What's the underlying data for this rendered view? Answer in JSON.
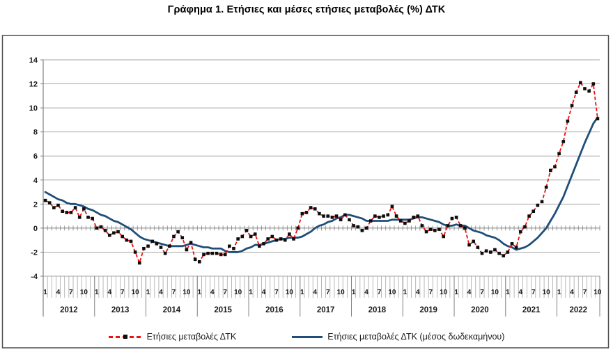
{
  "chart_data": {
    "type": "line",
    "title": "Γράφημα 1. Ετήσιες και μέσες ετήσιες μεταβολές (%) ΔΤΚ",
    "x_unit": "month",
    "x_start": "2012-01",
    "x_end": "2022-10",
    "years": [
      "2012",
      "2013",
      "2014",
      "2015",
      "2016",
      "2017",
      "2018",
      "2019",
      "2020",
      "2021",
      "2022"
    ],
    "month_tick_labels": [
      "1",
      "4",
      "7",
      "10"
    ],
    "ylim": [
      -4,
      14
    ],
    "y_ticks": [
      14,
      12,
      10,
      8,
      6,
      4,
      2,
      0,
      -2,
      -4
    ],
    "grid": true,
    "legend_position": "bottom",
    "grid_color": "#a6a6a6",
    "axis_color": "#808080",
    "border_color": "#4d4d4d",
    "series": [
      {
        "name": "Ετήσιες μεταβολές ΔΤΚ",
        "style": "dashed_line_with_square_markers",
        "color": "#ee1111",
        "marker_color": "#0d0d0d",
        "values": [
          2.3,
          2.1,
          1.7,
          1.9,
          1.4,
          1.3,
          1.3,
          1.7,
          0.9,
          1.6,
          0.9,
          0.8,
          0.0,
          0.1,
          -0.2,
          -0.6,
          -0.4,
          -0.3,
          -0.7,
          -1.0,
          -1.1,
          -2.0,
          -2.9,
          -1.7,
          -1.5,
          -1.1,
          -1.3,
          -1.6,
          -2.1,
          -1.5,
          -0.7,
          -0.3,
          -0.8,
          -1.8,
          -1.2,
          -2.6,
          -2.8,
          -2.2,
          -2.1,
          -2.1,
          -2.1,
          -2.2,
          -2.2,
          -1.5,
          -1.7,
          -0.9,
          -0.7,
          -0.2,
          -0.7,
          -0.5,
          -1.5,
          -1.3,
          -0.9,
          -0.7,
          -1.0,
          -0.9,
          -1.0,
          -0.5,
          -0.9,
          0.0,
          1.2,
          1.3,
          1.7,
          1.6,
          1.2,
          1.0,
          1.0,
          0.9,
          1.0,
          0.7,
          1.1,
          0.7,
          0.2,
          0.1,
          -0.2,
          0.0,
          0.6,
          1.0,
          0.9,
          1.0,
          1.1,
          1.8,
          1.0,
          0.6,
          0.4,
          0.6,
          0.9,
          1.0,
          0.2,
          -0.3,
          -0.1,
          -0.2,
          -0.1,
          -0.7,
          0.2,
          0.8,
          0.9,
          0.2,
          0.0,
          -1.4,
          -1.1,
          -1.6,
          -2.1,
          -1.9,
          -2.0,
          -1.8,
          -2.1,
          -2.3,
          -2.0,
          -1.3,
          -1.6,
          -0.3,
          0.1,
          1.0,
          1.4,
          1.9,
          2.2,
          3.4,
          4.8,
          5.1,
          6.2,
          7.2,
          8.9,
          10.2,
          11.3,
          12.1,
          11.6,
          11.4,
          12.0,
          9.1
        ]
      },
      {
        "name": "Ετήσιες μεταβολές ΔΤΚ (μέσος δωδεκαμήνου)",
        "style": "solid_line",
        "color": "#1f4e79",
        "values": [
          3.0,
          2.8,
          2.6,
          2.4,
          2.3,
          2.1,
          2.0,
          2.0,
          1.9,
          1.8,
          1.6,
          1.5,
          1.3,
          1.1,
          1.0,
          0.8,
          0.6,
          0.5,
          0.3,
          0.1,
          -0.1,
          -0.4,
          -0.7,
          -0.9,
          -1.0,
          -1.1,
          -1.2,
          -1.3,
          -1.4,
          -1.5,
          -1.5,
          -1.5,
          -1.5,
          -1.4,
          -1.3,
          -1.4,
          -1.5,
          -1.6,
          -1.6,
          -1.7,
          -1.7,
          -1.7,
          -1.9,
          -2.0,
          -2.0,
          -2.0,
          -1.9,
          -1.7,
          -1.6,
          -1.4,
          -1.4,
          -1.3,
          -1.2,
          -1.1,
          -1.0,
          -0.9,
          -0.9,
          -0.8,
          -0.8,
          -0.8,
          -0.7,
          -0.5,
          -0.3,
          0.0,
          0.2,
          0.3,
          0.5,
          0.6,
          0.8,
          0.9,
          1.1,
          1.1,
          1.0,
          0.9,
          0.8,
          0.6,
          0.6,
          0.6,
          0.6,
          0.6,
          0.6,
          0.7,
          0.7,
          0.7,
          0.7,
          0.7,
          0.8,
          0.9,
          0.9,
          0.8,
          0.7,
          0.6,
          0.5,
          0.3,
          0.2,
          0.2,
          0.3,
          0.2,
          0.2,
          0.0,
          -0.2,
          -0.3,
          -0.4,
          -0.6,
          -0.7,
          -0.8,
          -1.0,
          -1.3,
          -1.5,
          -1.6,
          -1.8,
          -1.7,
          -1.6,
          -1.4,
          -1.1,
          -0.8,
          -0.4,
          0.0,
          0.6,
          1.2,
          1.9,
          2.6,
          3.5,
          4.4,
          5.3,
          6.2,
          7.1,
          7.9,
          8.7,
          9.2
        ]
      }
    ]
  }
}
